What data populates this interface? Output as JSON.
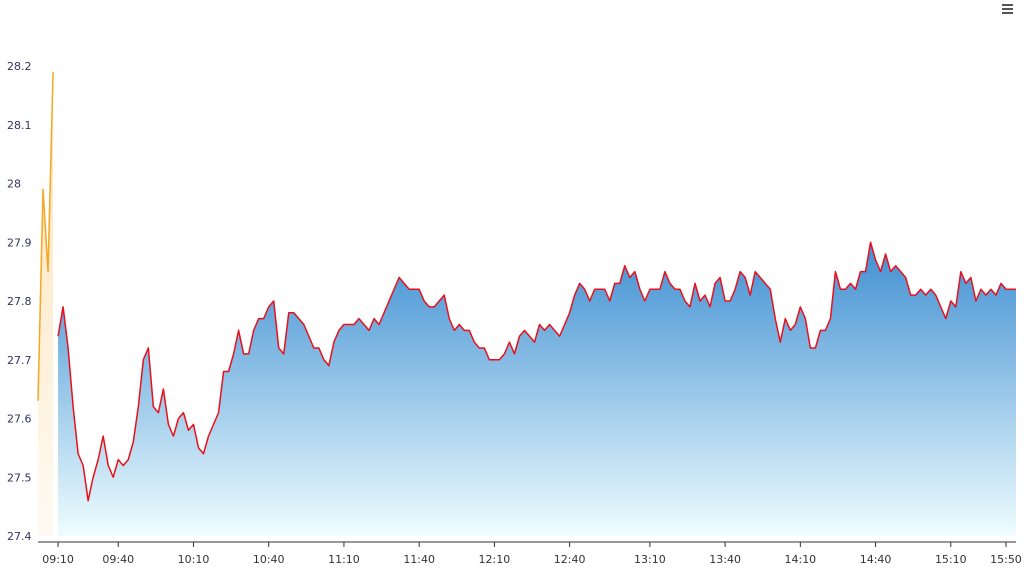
{
  "chart_data": {
    "type": "area",
    "categories": [
      null,
      null,
      null,
      null,
      "09:10",
      null,
      null,
      null,
      null,
      null,
      null,
      null,
      null,
      null,
      null,
      null,
      "09:40",
      null,
      null,
      null,
      null,
      null,
      null,
      null,
      null,
      null,
      null,
      null,
      null,
      null,
      null,
      "10:10",
      null,
      null,
      null,
      null,
      null,
      null,
      null,
      null,
      null,
      null,
      null,
      null,
      null,
      null,
      "10:40",
      null,
      null,
      null,
      null,
      null,
      null,
      null,
      null,
      null,
      null,
      null,
      null,
      null,
      null,
      "11:10",
      null,
      null,
      null,
      null,
      null,
      null,
      null,
      null,
      null,
      null,
      null,
      null,
      null,
      null,
      "11:40",
      null,
      null,
      null,
      null,
      null,
      null,
      null,
      null,
      null,
      null,
      null,
      null,
      null,
      null,
      "12:10",
      null,
      null,
      null,
      null,
      null,
      null,
      null,
      null,
      null,
      null,
      null,
      null,
      null,
      null,
      "12:40",
      null,
      null,
      null,
      null,
      null,
      null,
      null,
      null,
      null,
      null,
      null,
      null,
      null,
      null,
      null,
      "13:10",
      null,
      null,
      null,
      null,
      null,
      null,
      null,
      null,
      null,
      null,
      null,
      null,
      null,
      null,
      "13:40",
      null,
      null,
      null,
      null,
      null,
      null,
      null,
      null,
      null,
      null,
      null,
      null,
      null,
      null,
      "14:10",
      null,
      null,
      null,
      null,
      null,
      null,
      null,
      null,
      null,
      null,
      null,
      null,
      null,
      null,
      "14:40",
      null,
      null,
      null,
      null,
      null,
      null,
      null,
      null,
      null,
      null,
      null,
      null,
      null,
      null,
      "15:10",
      null,
      null,
      null,
      null,
      null,
      null,
      null,
      null,
      null,
      null,
      "15:50",
      null,
      null
    ],
    "series": [
      {
        "color": "#f5a623",
        "fill_top": "#fde3b8",
        "fill_bottom": "#fffaf2",
        "values": [
          27.63,
          27.99,
          27.85,
          28.19,
          null,
          null,
          null,
          null,
          null,
          null,
          null,
          null,
          null,
          null,
          null,
          null,
          null,
          null,
          null,
          null,
          null,
          null,
          null,
          null,
          null,
          null,
          null,
          null,
          null,
          null,
          null,
          null,
          null,
          null,
          null,
          null,
          null,
          null,
          null,
          null,
          null,
          null,
          null,
          null,
          null,
          null,
          null,
          null,
          null,
          null,
          null,
          null,
          null,
          null,
          null,
          null,
          null,
          null,
          null,
          null,
          null,
          null,
          null,
          null,
          null,
          null,
          null,
          null,
          null,
          null,
          null,
          null,
          null,
          null,
          null,
          null,
          null,
          null,
          null,
          null,
          null,
          null,
          null,
          null,
          null,
          null,
          null,
          null,
          null,
          null,
          null,
          null,
          null,
          null,
          null,
          null,
          null,
          null,
          null,
          null,
          null,
          null,
          null,
          null,
          null,
          null,
          null,
          null,
          null,
          null,
          null,
          null,
          null,
          null,
          null,
          null,
          null,
          null,
          null,
          null,
          null,
          null,
          null,
          null,
          null,
          null,
          null,
          null,
          null,
          null,
          null,
          null,
          null,
          null,
          null,
          null,
          null,
          null,
          null,
          null,
          null,
          null,
          null,
          null,
          null,
          null,
          null,
          null,
          null,
          null,
          null,
          null,
          null,
          null,
          null,
          null,
          null,
          null,
          null,
          null,
          null,
          null,
          null,
          null,
          null,
          null,
          null,
          null,
          null,
          null,
          null,
          null,
          null,
          null,
          null,
          null,
          null,
          null,
          null,
          null,
          null,
          null,
          null,
          null,
          null,
          null,
          null,
          null,
          null,
          null,
          null,
          null,
          null,
          null,
          null,
          null
        ]
      },
      {
        "color": "#e8101a",
        "fill_top": "#3f8fd2",
        "fill_bottom": "#effdff",
        "values": [
          null,
          null,
          null,
          null,
          27.74,
          27.79,
          27.72,
          27.62,
          27.54,
          27.52,
          27.46,
          27.5,
          27.53,
          27.57,
          27.52,
          27.5,
          27.53,
          27.52,
          27.53,
          27.56,
          27.62,
          27.7,
          27.72,
          27.62,
          27.61,
          27.65,
          27.59,
          27.57,
          27.6,
          27.61,
          27.58,
          27.59,
          27.55,
          27.54,
          27.57,
          27.59,
          27.61,
          27.68,
          27.68,
          27.71,
          27.75,
          27.71,
          27.71,
          27.75,
          27.77,
          27.77,
          27.79,
          27.8,
          27.72,
          27.71,
          27.78,
          27.78,
          27.77,
          27.76,
          27.74,
          27.72,
          27.72,
          27.7,
          27.69,
          27.73,
          27.75,
          27.76,
          27.76,
          27.76,
          27.77,
          27.76,
          27.75,
          27.77,
          27.76,
          27.78,
          27.8,
          27.82,
          27.84,
          27.83,
          27.82,
          27.82,
          27.82,
          27.8,
          27.79,
          27.79,
          27.8,
          27.81,
          27.77,
          27.75,
          27.76,
          27.75,
          27.75,
          27.73,
          27.72,
          27.72,
          27.7,
          27.7,
          27.7,
          27.71,
          27.73,
          27.71,
          27.74,
          27.75,
          27.74,
          27.73,
          27.76,
          27.75,
          27.76,
          27.75,
          27.74,
          27.76,
          27.78,
          27.81,
          27.83,
          27.82,
          27.8,
          27.82,
          27.82,
          27.82,
          27.8,
          27.83,
          27.83,
          27.86,
          27.84,
          27.85,
          27.82,
          27.8,
          27.82,
          27.82,
          27.82,
          27.85,
          27.83,
          27.82,
          27.82,
          27.8,
          27.79,
          27.83,
          27.8,
          27.81,
          27.79,
          27.83,
          27.84,
          27.8,
          27.8,
          27.82,
          27.85,
          27.84,
          27.81,
          27.85,
          27.84,
          27.83,
          27.82,
          27.77,
          27.73,
          27.77,
          27.75,
          27.76,
          27.79,
          27.77,
          27.72,
          27.72,
          27.75,
          27.75,
          27.77,
          27.85,
          27.82,
          27.82,
          27.83,
          27.82,
          27.85,
          27.85,
          27.9,
          27.87,
          27.85,
          27.88,
          27.85,
          27.86,
          27.85,
          27.84,
          27.81,
          27.81,
          27.82,
          27.81,
          27.82,
          27.81,
          27.79,
          27.77,
          27.8,
          27.79,
          27.85,
          27.83,
          27.84,
          27.8,
          27.82,
          27.81,
          27.82,
          27.81,
          27.83,
          27.82,
          27.82,
          27.82
        ]
      }
    ],
    "ylim": [
      27.4,
      28.2
    ],
    "yticks": [
      27.4,
      27.5,
      27.6,
      27.7,
      27.8,
      27.9,
      28,
      28.1,
      28.2
    ],
    "grid": false
  }
}
